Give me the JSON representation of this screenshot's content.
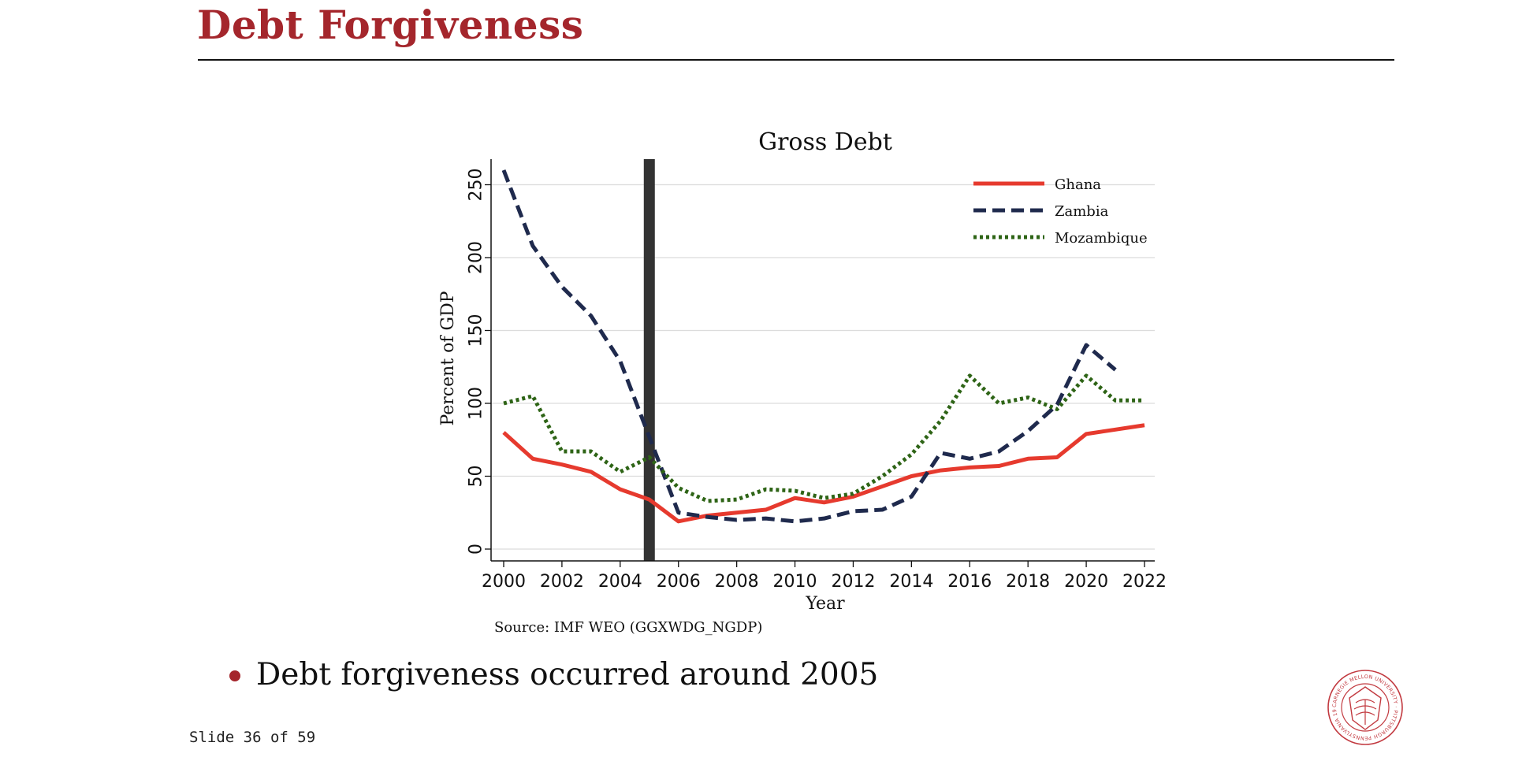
{
  "slide": {
    "title": "Debt Forgiveness",
    "bullet": "Debt forgiveness occurred around 2005",
    "slide_number": "Slide 36 of 59",
    "seal_icon": "carnegie-mellon-seal",
    "seal_text": "CARNEGIE MELLON UNIVERSITY · PITTSBURGH PENNSYLVANIA 1900",
    "accent_color": "#a4262c"
  },
  "chart_data": {
    "type": "line",
    "title": "Gross Debt",
    "xlabel": "Year",
    "ylabel": "Percent of GDP",
    "source": "Source: IMF WEO (GGXWDG_NGDP)",
    "xlim": [
      2000,
      2022
    ],
    "ylim": [
      0,
      260
    ],
    "xticks": [
      2000,
      2002,
      2004,
      2006,
      2008,
      2010,
      2012,
      2014,
      2016,
      2018,
      2020,
      2022
    ],
    "yticks": [
      0,
      50,
      100,
      150,
      200,
      250
    ],
    "grid": "horizontal",
    "legend_position": "top-right",
    "vline": {
      "x": 2005,
      "color": "#333333"
    },
    "series": [
      {
        "name": "Ghana",
        "color": "#e63a2e",
        "style": "solid",
        "x": [
          2000,
          2001,
          2002,
          2003,
          2004,
          2005,
          2006,
          2007,
          2008,
          2009,
          2010,
          2011,
          2012,
          2013,
          2014,
          2015,
          2016,
          2017,
          2018,
          2019,
          2020,
          2021,
          2022
        ],
        "values": [
          80,
          62,
          58,
          53,
          41,
          34,
          19,
          23,
          25,
          27,
          35,
          32,
          36,
          43,
          50,
          54,
          56,
          57,
          62,
          63,
          79,
          82,
          85
        ]
      },
      {
        "name": "Zambia",
        "color": "#1f2a4d",
        "style": "dashed",
        "x": [
          2000,
          2001,
          2002,
          2003,
          2004,
          2005,
          2006,
          2007,
          2008,
          2009,
          2010,
          2011,
          2012,
          2013,
          2014,
          2015,
          2016,
          2017,
          2018,
          2019,
          2020,
          2021
        ],
        "values": [
          260,
          208,
          180,
          160,
          129,
          77,
          25,
          22,
          20,
          21,
          19,
          21,
          26,
          27,
          36,
          66,
          62,
          67,
          81,
          99,
          140,
          123
        ]
      },
      {
        "name": "Mozambique",
        "color": "#2e6416",
        "style": "dotted",
        "x": [
          2000,
          2001,
          2002,
          2003,
          2004,
          2005,
          2006,
          2007,
          2008,
          2009,
          2010,
          2011,
          2012,
          2013,
          2014,
          2015,
          2016,
          2017,
          2018,
          2019,
          2020,
          2021,
          2022
        ],
        "values": [
          100,
          105,
          67,
          67,
          53,
          63,
          42,
          33,
          34,
          41,
          40,
          35,
          38,
          50,
          65,
          88,
          119,
          100,
          104,
          96,
          119,
          102,
          102
        ]
      }
    ]
  }
}
